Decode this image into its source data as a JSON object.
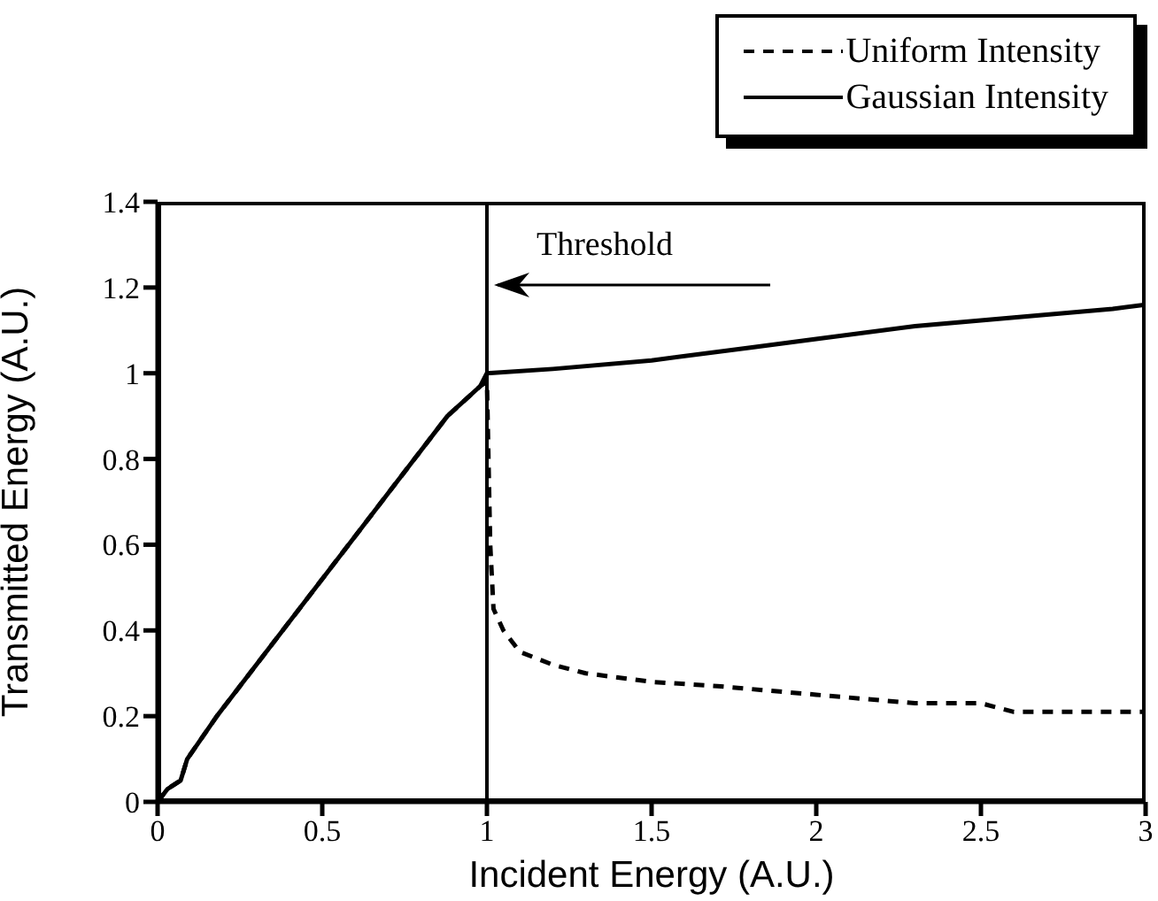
{
  "chart_data": {
    "type": "line",
    "xlabel": "Incident Energy (A.U.)",
    "ylabel": "Transmitted Energy (A.U.)",
    "xlim": [
      0,
      3
    ],
    "xticks": [
      0,
      0.5,
      1,
      1.5,
      2,
      2.5,
      3
    ],
    "ylim": [
      0,
      1.4
    ],
    "yticks": [
      0,
      0.2,
      0.4,
      0.6,
      0.8,
      1,
      1.2,
      1.4
    ],
    "grid": false,
    "legend": "top right",
    "marker": "none",
    "ref_lines": [
      {
        "axis": "x",
        "value": 1,
        "label": "Threshold",
        "color": "#000000",
        "line_style": "solid"
      }
    ],
    "series": [
      {
        "name": "Uniform Intensity",
        "color": "#000000",
        "line_style": "dashed",
        "x": [
          0,
          0.03,
          0.07,
          0.09,
          0.18,
          0.38,
          0.58,
          0.78,
          0.88,
          0.98,
          1.0,
          1.01,
          1.02,
          1.05,
          1.1,
          1.2,
          1.3,
          1.5,
          1.7,
          2.0,
          2.3,
          2.5,
          2.6,
          2.8,
          3.0
        ],
        "values": [
          0,
          0.03,
          0.05,
          0.1,
          0.2,
          0.4,
          0.6,
          0.8,
          0.9,
          0.97,
          0.98,
          0.6,
          0.45,
          0.4,
          0.35,
          0.32,
          0.3,
          0.28,
          0.27,
          0.25,
          0.23,
          0.23,
          0.21,
          0.21,
          0.21
        ]
      },
      {
        "name": "Gaussian Intensity",
        "color": "#000000",
        "line_style": "solid",
        "x": [
          0,
          0.03,
          0.07,
          0.09,
          0.18,
          0.38,
          0.58,
          0.78,
          0.88,
          0.98,
          1.0,
          1.2,
          1.5,
          1.8,
          2.0,
          2.3,
          2.6,
          2.9,
          3.0
        ],
        "values": [
          0,
          0.03,
          0.05,
          0.1,
          0.2,
          0.4,
          0.6,
          0.8,
          0.9,
          0.97,
          1.0,
          1.01,
          1.03,
          1.06,
          1.08,
          1.11,
          1.13,
          1.15,
          1.16
        ]
      }
    ]
  }
}
